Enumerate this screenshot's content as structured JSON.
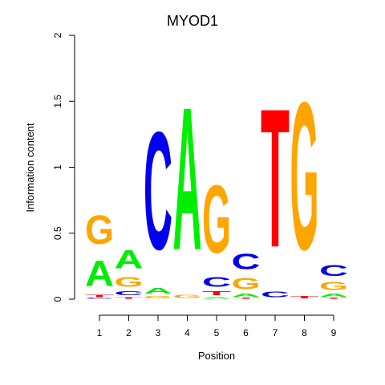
{
  "chart_data": {
    "type": "sequence-logo",
    "title": "MYOD1",
    "xlabel": "Position",
    "ylabel": "Information content",
    "ylim": [
      0,
      2
    ],
    "yticks": [
      {
        "value": 0,
        "label": "0"
      },
      {
        "value": 0.5,
        "label": "0.5"
      },
      {
        "value": 1,
        "label": "1"
      },
      {
        "value": 1.5,
        "label": "1.5"
      },
      {
        "value": 2,
        "label": "2"
      }
    ],
    "colors": {
      "A": "#00ee00",
      "C": "#0000ee",
      "G": "#ffa500",
      "T": "#ff0000"
    },
    "positions": [
      {
        "label": "1",
        "letters": [
          {
            "base": "C",
            "value": 0.01
          },
          {
            "base": "T",
            "value": 0.03
          },
          {
            "base": "A",
            "value": 0.31
          },
          {
            "base": "G",
            "value": 0.35
          }
        ]
      },
      {
        "label": "2",
        "letters": [
          {
            "base": "T",
            "value": 0.02
          },
          {
            "base": "C",
            "value": 0.05
          },
          {
            "base": "G",
            "value": 0.12
          },
          {
            "base": "A",
            "value": 0.22
          }
        ]
      },
      {
        "label": "3",
        "letters": [
          {
            "base": "G",
            "value": 0.03
          },
          {
            "base": "A",
            "value": 0.07
          },
          {
            "base": "C",
            "value": 1.43
          }
        ]
      },
      {
        "label": "4",
        "letters": [
          {
            "base": "G",
            "value": 0.04
          },
          {
            "base": "A",
            "value": 1.73
          }
        ]
      },
      {
        "label": "5",
        "letters": [
          {
            "base": "A",
            "value": 0.02
          },
          {
            "base": "T",
            "value": 0.05
          },
          {
            "base": "C",
            "value": 0.12
          },
          {
            "base": "G",
            "value": 0.82
          }
        ]
      },
      {
        "label": "6",
        "letters": [
          {
            "base": "T",
            "value": 0.01
          },
          {
            "base": "A",
            "value": 0.04
          },
          {
            "base": "G",
            "value": 0.14
          },
          {
            "base": "C",
            "value": 0.19
          }
        ]
      },
      {
        "label": "7",
        "letters": [
          {
            "base": "C",
            "value": 0.07
          },
          {
            "base": "T",
            "value": 1.68
          }
        ]
      },
      {
        "label": "8",
        "letters": [
          {
            "base": "T",
            "value": 0.03
          },
          {
            "base": "G",
            "value": 1.79
          }
        ]
      },
      {
        "label": "9",
        "letters": [
          {
            "base": "T",
            "value": 0.01
          },
          {
            "base": "A",
            "value": 0.04
          },
          {
            "base": "G",
            "value": 0.1
          },
          {
            "base": "C",
            "value": 0.13
          }
        ]
      }
    ]
  }
}
